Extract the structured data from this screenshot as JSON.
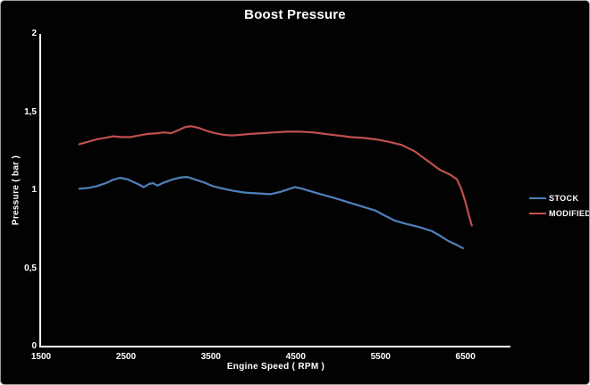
{
  "chart_data": {
    "type": "line",
    "title": "Boost Pressure",
    "xlabel": "Engine Speed ( RPM )",
    "ylabel": "Pressure ( bar )",
    "xlim": [
      1500,
      7030
    ],
    "ylim": [
      0,
      2
    ],
    "x_tick_labels": [
      "1500",
      "2500",
      "3500",
      "4500",
      "5500",
      "6500"
    ],
    "x_tick_values": [
      1500,
      2500,
      3500,
      4500,
      5500,
      6500
    ],
    "y_tick_labels": [
      "0",
      "0,5",
      "1",
      "1,5",
      "2"
    ],
    "y_tick_values": [
      0,
      0.5,
      1,
      1.5,
      2
    ],
    "grid": false,
    "legend_position": "right",
    "colors": {
      "background": "#020202",
      "axis": "#ffffff",
      "text": "#ffffff",
      "stock": "#4F81BD",
      "modified": "#C0504D"
    },
    "series": [
      {
        "name": "STOCK",
        "color": "#4F81BD",
        "points": [
          [
            1950,
            1.01
          ],
          [
            2050,
            1.015
          ],
          [
            2150,
            1.025
          ],
          [
            2260,
            1.045
          ],
          [
            2340,
            1.065
          ],
          [
            2430,
            1.08
          ],
          [
            2520,
            1.07
          ],
          [
            2600,
            1.05
          ],
          [
            2660,
            1.035
          ],
          [
            2710,
            1.02
          ],
          [
            2770,
            1.04
          ],
          [
            2820,
            1.045
          ],
          [
            2870,
            1.03
          ],
          [
            2950,
            1.05
          ],
          [
            3050,
            1.07
          ],
          [
            3150,
            1.082
          ],
          [
            3220,
            1.085
          ],
          [
            3310,
            1.07
          ],
          [
            3420,
            1.05
          ],
          [
            3530,
            1.025
          ],
          [
            3650,
            1.01
          ],
          [
            3780,
            0.995
          ],
          [
            3900,
            0.985
          ],
          [
            4050,
            0.98
          ],
          [
            4200,
            0.975
          ],
          [
            4320,
            0.99
          ],
          [
            4430,
            1.01
          ],
          [
            4490,
            1.02
          ],
          [
            4580,
            1.01
          ],
          [
            4700,
            0.99
          ],
          [
            4830,
            0.97
          ],
          [
            4960,
            0.95
          ],
          [
            5080,
            0.93
          ],
          [
            5200,
            0.91
          ],
          [
            5320,
            0.89
          ],
          [
            5440,
            0.87
          ],
          [
            5560,
            0.835
          ],
          [
            5670,
            0.805
          ],
          [
            5800,
            0.785
          ],
          [
            5950,
            0.765
          ],
          [
            6100,
            0.74
          ],
          [
            6200,
            0.71
          ],
          [
            6300,
            0.675
          ],
          [
            6400,
            0.65
          ],
          [
            6470,
            0.63
          ]
        ]
      },
      {
        "name": "MODIFIED",
        "color": "#C0504D",
        "points": [
          [
            1950,
            1.295
          ],
          [
            2050,
            1.31
          ],
          [
            2150,
            1.325
          ],
          [
            2250,
            1.335
          ],
          [
            2350,
            1.345
          ],
          [
            2450,
            1.34
          ],
          [
            2550,
            1.34
          ],
          [
            2650,
            1.35
          ],
          [
            2750,
            1.36
          ],
          [
            2870,
            1.365
          ],
          [
            2950,
            1.37
          ],
          [
            3030,
            1.365
          ],
          [
            3120,
            1.385
          ],
          [
            3200,
            1.405
          ],
          [
            3270,
            1.41
          ],
          [
            3350,
            1.4
          ],
          [
            3450,
            1.38
          ],
          [
            3550,
            1.365
          ],
          [
            3650,
            1.355
          ],
          [
            3750,
            1.35
          ],
          [
            3850,
            1.355
          ],
          [
            3950,
            1.36
          ],
          [
            4100,
            1.365
          ],
          [
            4250,
            1.37
          ],
          [
            4400,
            1.375
          ],
          [
            4550,
            1.375
          ],
          [
            4700,
            1.37
          ],
          [
            4850,
            1.36
          ],
          [
            5000,
            1.35
          ],
          [
            5150,
            1.34
          ],
          [
            5300,
            1.335
          ],
          [
            5450,
            1.325
          ],
          [
            5600,
            1.31
          ],
          [
            5750,
            1.29
          ],
          [
            5900,
            1.25
          ],
          [
            6000,
            1.21
          ],
          [
            6100,
            1.17
          ],
          [
            6200,
            1.13
          ],
          [
            6320,
            1.1
          ],
          [
            6400,
            1.07
          ],
          [
            6450,
            1.01
          ],
          [
            6500,
            0.925
          ],
          [
            6540,
            0.84
          ],
          [
            6575,
            0.775
          ]
        ]
      }
    ]
  }
}
